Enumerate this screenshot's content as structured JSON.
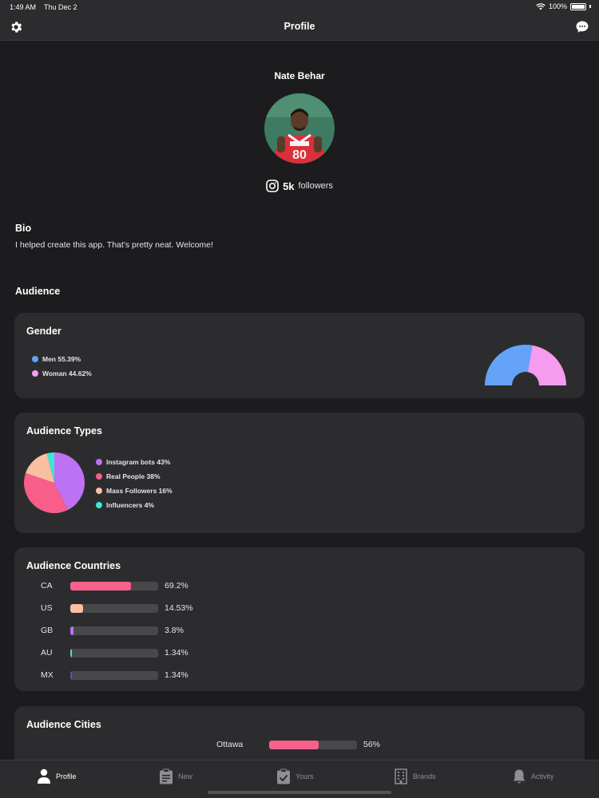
{
  "status_bar": {
    "time": "1:49 AM",
    "date": "Thu Dec 2",
    "battery": "100%"
  },
  "nav": {
    "title": "Profile",
    "left_icon": "gear-icon",
    "right_icon": "chat-icon"
  },
  "profile": {
    "name": "Nate Behar",
    "followers_count": "5k",
    "followers_label": "followers",
    "social_icon": "instagram-icon"
  },
  "bio": {
    "title": "Bio",
    "text": "I helped create this app. That's pretty neat. Welcome!"
  },
  "audience": {
    "title": "Audience"
  },
  "gender": {
    "title": "Gender",
    "legend": [
      {
        "label": "Men 55.39%",
        "color": "#64a3f8"
      },
      {
        "label": "Woman 44.62%",
        "color": "#f59bf0"
      }
    ]
  },
  "audience_types": {
    "title": "Audience Types",
    "legend": [
      {
        "label": "Instagram bots 43%",
        "color": "#bd72f3"
      },
      {
        "label": "Real People 38%",
        "color": "#f95d8a"
      },
      {
        "label": "Mass Followers 16%",
        "color": "#f9bfa0"
      },
      {
        "label": "Influencers 4%",
        "color": "#3ce6d8"
      }
    ]
  },
  "countries": {
    "title": "Audience Countries",
    "rows": [
      {
        "label": "CA",
        "value": "69.2%",
        "fraction": 0.692,
        "color": "#f7628d"
      },
      {
        "label": "US",
        "value": "14.53%",
        "fraction": 0.1453,
        "color": "#f9bf9f"
      },
      {
        "label": "GB",
        "value": "3.8%",
        "fraction": 0.038,
        "color": "#bd72f3"
      },
      {
        "label": "AU",
        "value": "1.34%",
        "fraction": 0.0134,
        "color": "#3ce6d8"
      },
      {
        "label": "MX",
        "value": "1.34%",
        "fraction": 0.0134,
        "color": "#7b3fc4"
      }
    ]
  },
  "cities": {
    "title": "Audience Cities",
    "rows": [
      {
        "label": "Ottawa",
        "value": "56%",
        "fraction": 0.56,
        "color": "#f7628d"
      }
    ]
  },
  "tabs": [
    {
      "label": "Profile",
      "icon": "person-icon",
      "active": true
    },
    {
      "label": "New",
      "icon": "clipboard-icon",
      "active": false
    },
    {
      "label": "Yours",
      "icon": "clipboard-check-icon",
      "active": false
    },
    {
      "label": "Brands",
      "icon": "building-icon",
      "active": false
    },
    {
      "label": "Activity",
      "icon": "bell-icon",
      "active": false
    }
  ],
  "chart_data": [
    {
      "type": "pie",
      "categories": [
        "Men",
        "Woman"
      ],
      "values": [
        55.39,
        44.62
      ],
      "title": "Gender"
    },
    {
      "type": "pie",
      "categories": [
        "Instagram bots",
        "Real People",
        "Mass Followers",
        "Influencers"
      ],
      "values": [
        43,
        38,
        16,
        4
      ],
      "title": "Audience Types"
    },
    {
      "type": "bar",
      "categories": [
        "CA",
        "US",
        "GB",
        "AU",
        "MX"
      ],
      "values": [
        69.2,
        14.53,
        3.8,
        1.34,
        1.34
      ],
      "title": "Audience Countries"
    },
    {
      "type": "bar",
      "categories": [
        "Ottawa"
      ],
      "values": [
        56
      ],
      "title": "Audience Cities"
    }
  ]
}
